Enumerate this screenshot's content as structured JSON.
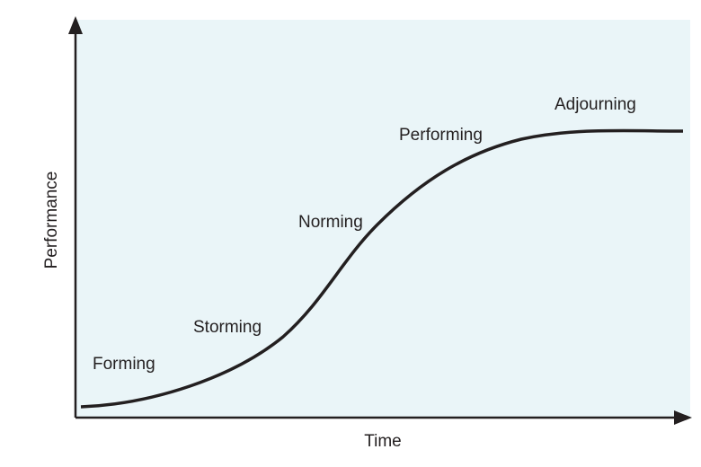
{
  "axes": {
    "x_label": "Time",
    "y_label": "Performance"
  },
  "stages": [
    "Forming",
    "Storming",
    "Norming",
    "Performing",
    "Adjourning"
  ]
}
